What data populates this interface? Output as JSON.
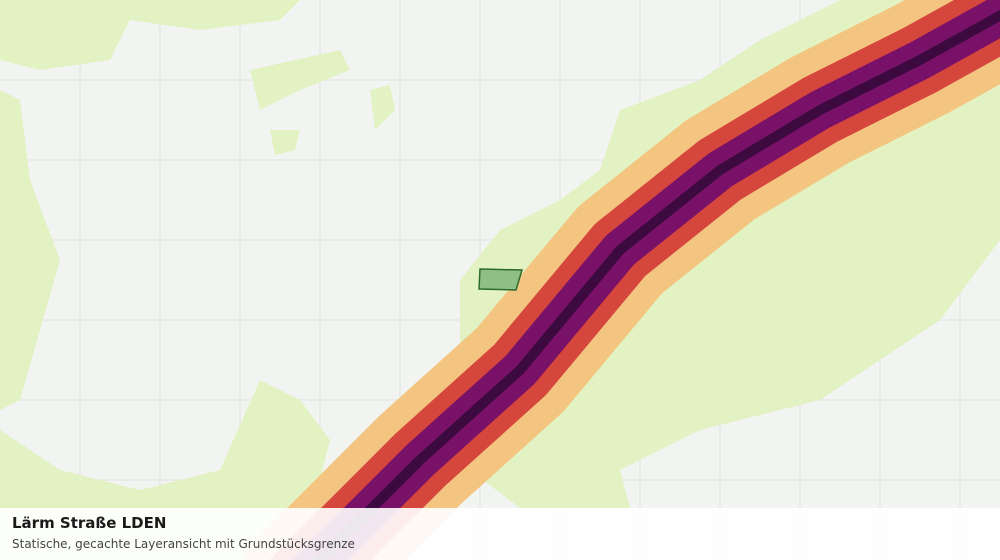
{
  "map": {
    "title": "Lärm Straße LDEN",
    "subtitle": "Statische, gecachte Layeransicht mit Grundstücksgrenze"
  }
}
